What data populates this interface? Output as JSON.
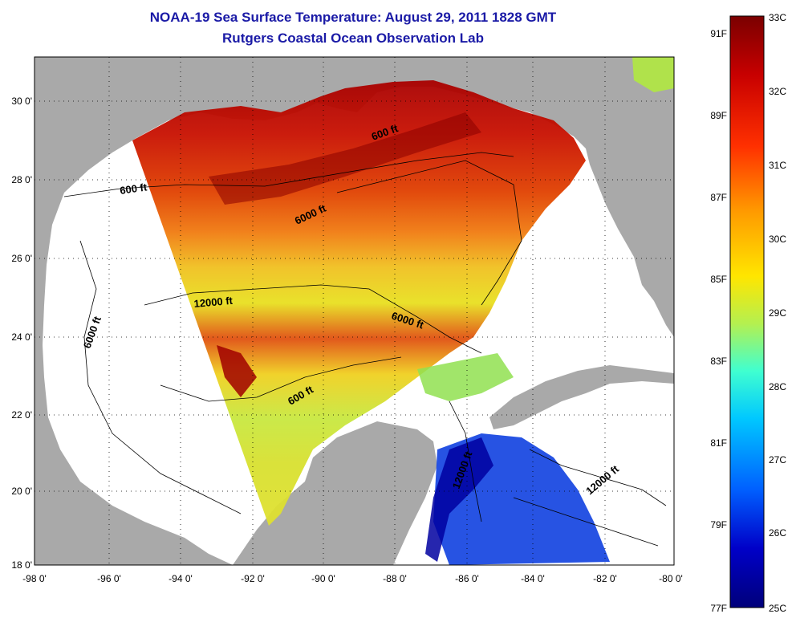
{
  "title": {
    "line1": "NOAA-19 Sea Surface Temperature:  August 29, 2011 1828 GMT",
    "line2": "Rutgers Coastal Ocean Observation Lab"
  },
  "map": {
    "lat_ticks": [
      "30 0'",
      "28 0'",
      "26 0'",
      "24 0'",
      "22 0'",
      "20 0'",
      "18 0'"
    ],
    "lon_ticks": [
      "-98 0'",
      "-96 0'",
      "-94 0'",
      "-92 0'",
      "-90 0'",
      "-88 0'",
      "-86 0'",
      "-84 0'",
      "-82 0'",
      "-80 0'"
    ],
    "contour_labels": [
      "600 ft",
      "600 ft",
      "6000 ft",
      "6000 ft",
      "12000 ft",
      "6000 ft",
      "600 ft",
      "12000 ft",
      "12000 ft"
    ],
    "land_color": "#a9a9a9"
  },
  "colorbar": {
    "celsius_labels": [
      "33C",
      "32C",
      "31C",
      "30C",
      "29C",
      "28C",
      "27C",
      "26C",
      "25C"
    ],
    "fahrenheit_labels": [
      "91F",
      "89F",
      "87F",
      "85F",
      "83F",
      "81F",
      "79F",
      "77F"
    ],
    "colors": [
      "#7a0000",
      "#c80000",
      "#ff4000",
      "#ff9a00",
      "#ffe600",
      "#b4f050",
      "#40ffd0",
      "#00c8ff",
      "#0060ff",
      "#0000c8",
      "#00007a"
    ]
  }
}
